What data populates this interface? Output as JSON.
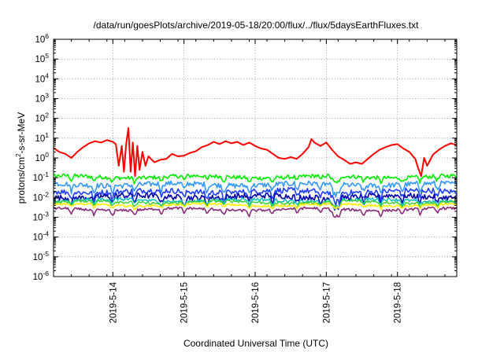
{
  "chart_data": {
    "type": "line",
    "title": "/data/run/goesPlots/archive/2019-05-18/20:00/flux/../flux/5daysEarthFluxes.txt",
    "xlabel": "Coordinated Universal Time (UTC)",
    "ylabel_parts": [
      "protons/cm",
      "2",
      "-s-sr-MeV"
    ],
    "yscale": "log",
    "ylim_exponents": [
      -6,
      6
    ],
    "ytick_base": "10",
    "ytick_exponents": [
      "-6",
      "-5",
      "-4",
      "-3",
      "-2",
      "-1",
      "0",
      "1",
      "2",
      "3",
      "4",
      "5",
      "6"
    ],
    "xlim": [
      "2019-05-13 04:00",
      "2019-05-18 20:00"
    ],
    "xticks": [
      {
        "date": "2019-05-14 00:00",
        "label": "2019-5-14"
      },
      {
        "date": "2019-05-15 00:00",
        "label": "2019-5-15"
      },
      {
        "date": "2019-05-16 00:00",
        "label": "2019-5-16"
      },
      {
        "date": "2019-05-17 00:00",
        "label": "2019-5-17"
      },
      {
        "date": "2019-05-18 00:00",
        "label": "2019-5-18"
      }
    ],
    "grid": true,
    "legend": "none",
    "series": [
      {
        "color": "#ff0000",
        "stroke_width": 2,
        "points": [
          [
            "2019-05-13 04:00",
            3.2
          ],
          [
            "2019-05-13 06:00",
            2.0
          ],
          [
            "2019-05-13 08:00",
            1.6
          ],
          [
            "2019-05-13 10:00",
            1.0
          ],
          [
            "2019-05-13 12:00",
            2.0
          ],
          [
            "2019-05-13 14:00",
            3.5
          ],
          [
            "2019-05-13 16:00",
            5.5
          ],
          [
            "2019-05-13 18:00",
            7.0
          ],
          [
            "2019-05-13 20:00",
            6.0
          ],
          [
            "2019-05-13 22:00",
            8.0
          ],
          [
            "2019-05-14 00:00",
            6.5
          ],
          [
            "2019-05-14 01:00",
            5.0
          ],
          [
            "2019-05-14 02:00",
            0.4
          ],
          [
            "2019-05-14 03:00",
            4.0
          ],
          [
            "2019-05-14 03:45",
            0.2
          ],
          [
            "2019-05-14 04:30",
            5.0
          ],
          [
            "2019-05-14 05:15",
            33
          ],
          [
            "2019-05-14 06:00",
            0.2
          ],
          [
            "2019-05-14 06:45",
            6.0
          ],
          [
            "2019-05-14 07:30",
            0.12
          ],
          [
            "2019-05-14 08:15",
            4.0
          ],
          [
            "2019-05-14 09:00",
            0.25
          ],
          [
            "2019-05-14 10:00",
            2.0
          ],
          [
            "2019-05-14 11:00",
            0.4
          ],
          [
            "2019-05-14 12:00",
            1.2
          ],
          [
            "2019-05-14 14:00",
            0.6
          ],
          [
            "2019-05-14 16:00",
            0.8
          ],
          [
            "2019-05-14 18:00",
            0.9
          ],
          [
            "2019-05-14 20:00",
            1.6
          ],
          [
            "2019-05-14 22:00",
            1.2
          ],
          [
            "2019-05-15 00:00",
            1.3
          ],
          [
            "2019-05-15 02:00",
            1.8
          ],
          [
            "2019-05-15 04:00",
            2.2
          ],
          [
            "2019-05-15 06:00",
            3.5
          ],
          [
            "2019-05-15 08:00",
            4.5
          ],
          [
            "2019-05-15 10:00",
            6.5
          ],
          [
            "2019-05-15 12:00",
            5.0
          ],
          [
            "2019-05-15 14:00",
            7.0
          ],
          [
            "2019-05-15 16:00",
            5.5
          ],
          [
            "2019-05-15 18:00",
            6.5
          ],
          [
            "2019-05-15 20:00",
            4.5
          ],
          [
            "2019-05-15 22:00",
            6.0
          ],
          [
            "2019-05-16 00:00",
            4.0
          ],
          [
            "2019-05-16 02:00",
            3.0
          ],
          [
            "2019-05-16 04:00",
            2.6
          ],
          [
            "2019-05-16 06:00",
            1.6
          ],
          [
            "2019-05-16 08:00",
            1.0
          ],
          [
            "2019-05-16 10:00",
            0.9
          ],
          [
            "2019-05-16 12:00",
            1.1
          ],
          [
            "2019-05-16 14:00",
            0.9
          ],
          [
            "2019-05-16 16:00",
            1.6
          ],
          [
            "2019-05-16 18:00",
            3.5
          ],
          [
            "2019-05-16 19:00",
            9.0
          ],
          [
            "2019-05-16 20:00",
            6.0
          ],
          [
            "2019-05-16 22:00",
            4.0
          ],
          [
            "2019-05-17 00:00",
            6.0
          ],
          [
            "2019-05-17 02:00",
            2.5
          ],
          [
            "2019-05-17 04:00",
            1.2
          ],
          [
            "2019-05-17 06:00",
            0.8
          ],
          [
            "2019-05-17 08:00",
            0.5
          ],
          [
            "2019-05-17 10:00",
            0.6
          ],
          [
            "2019-05-17 12:00",
            0.5
          ],
          [
            "2019-05-17 14:00",
            0.9
          ],
          [
            "2019-05-17 16:00",
            1.6
          ],
          [
            "2019-05-17 18:00",
            2.6
          ],
          [
            "2019-05-17 20:00",
            3.5
          ],
          [
            "2019-05-17 22:00",
            4.5
          ],
          [
            "2019-05-18 00:00",
            5.0
          ],
          [
            "2019-05-18 02:00",
            3.0
          ],
          [
            "2019-05-18 04:00",
            2.0
          ],
          [
            "2019-05-18 06:00",
            0.9
          ],
          [
            "2019-05-18 07:00",
            0.3
          ],
          [
            "2019-05-18 08:00",
            0.12
          ],
          [
            "2019-05-18 09:00",
            1.0
          ],
          [
            "2019-05-18 10:00",
            0.4
          ],
          [
            "2019-05-18 12:00",
            1.5
          ],
          [
            "2019-05-18 14:00",
            2.6
          ],
          [
            "2019-05-18 16:00",
            4.0
          ],
          [
            "2019-05-18 18:00",
            5.5
          ],
          [
            "2019-05-18 20:00",
            4.5
          ]
        ]
      },
      {
        "color": "#00ee00",
        "stroke_width": 1.6,
        "level": 0.11,
        "noise": 0.1,
        "dips": 0.3
      },
      {
        "color": "#3399ff",
        "stroke_width": 1.6,
        "level": 0.045,
        "noise": 0.13,
        "dips": 0.45
      },
      {
        "color": "#1e40ff",
        "stroke_width": 1.6,
        "level": 0.02,
        "noise": 0.14,
        "dips": 0.45
      },
      {
        "color": "#0000aa",
        "stroke_width": 1.6,
        "level": 0.011,
        "noise": 0.14,
        "dips": 0.45
      },
      {
        "color": "#00bfbf",
        "stroke_width": 1.4,
        "level": 0.0072,
        "noise": 0.08,
        "dips": 0.3
      },
      {
        "color": "#33cc33",
        "stroke_width": 1.4,
        "level": 0.0058,
        "noise": 0.07,
        "dips": 0.25
      },
      {
        "color": "#ffee00",
        "stroke_width": 1.6,
        "level": 0.0042,
        "noise": 0.05,
        "dips": 0.2
      },
      {
        "color": "#8b2a7a",
        "stroke_width": 1.6,
        "level": 0.0025,
        "noise": 0.06,
        "dips": 0.35
      }
    ]
  }
}
